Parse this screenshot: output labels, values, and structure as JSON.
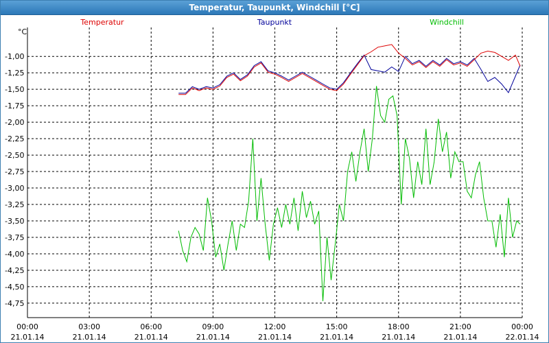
{
  "window": {
    "title": "Temperatur, Taupunkt, Windchill [°C]"
  },
  "chart_data": {
    "type": "line",
    "title": "Temperatur, Taupunkt, Windchill [°C]",
    "ylabel": "°C",
    "ylim": [
      -4.97,
      -0.56
    ],
    "grid": true,
    "legend_position": "top",
    "yticks": [
      "-1,00",
      "-1,25",
      "-1,50",
      "-1,75",
      "-2,00",
      "-2,25",
      "-2,50",
      "-2,75",
      "-3,00",
      "-3,25",
      "-3,50",
      "-3,75",
      "-4,00",
      "-4,25",
      "-4,50",
      "-4,75"
    ],
    "ytick_values": [
      -1.0,
      -1.25,
      -1.5,
      -1.75,
      -2.0,
      -2.25,
      -2.5,
      -2.75,
      -3.0,
      -3.25,
      -3.5,
      -3.75,
      -4.0,
      -4.25,
      -4.5,
      -4.75
    ],
    "xticks": [
      {
        "time": "00:00",
        "date": "21.01.14"
      },
      {
        "time": "03:00",
        "date": "21.01.14"
      },
      {
        "time": "06:00",
        "date": "21.01.14"
      },
      {
        "time": "09:00",
        "date": "21.01.14"
      },
      {
        "time": "12:00",
        "date": "21.01.14"
      },
      {
        "time": "15:00",
        "date": "21.01.14"
      },
      {
        "time": "18:00",
        "date": "21.01.14"
      },
      {
        "time": "21:00",
        "date": "21.01.14"
      },
      {
        "time": "00:00",
        "date": "22.01.14"
      }
    ],
    "xlim": [
      0,
      24
    ],
    "series": [
      {
        "name": "Temperatur",
        "color": "#dd0000",
        "x": [
          7.33,
          7.67,
          8.0,
          8.33,
          8.67,
          9.0,
          9.33,
          9.67,
          10.0,
          10.33,
          10.67,
          11.0,
          11.33,
          11.67,
          12.0,
          12.33,
          12.67,
          13.0,
          13.33,
          13.67,
          14.0,
          14.33,
          14.67,
          15.0,
          15.33,
          15.67,
          16.0,
          16.33,
          16.67,
          17.0,
          17.33,
          17.67,
          18.0,
          18.33,
          18.67,
          19.0,
          19.33,
          19.67,
          20.0,
          20.33,
          20.67,
          21.0,
          21.33,
          21.67,
          22.0,
          22.33,
          22.67,
          23.0,
          23.33,
          23.67,
          23.9
        ],
        "values": [
          -1.58,
          -1.58,
          -1.48,
          -1.52,
          -1.48,
          -1.5,
          -1.45,
          -1.32,
          -1.27,
          -1.37,
          -1.3,
          -1.16,
          -1.1,
          -1.24,
          -1.27,
          -1.32,
          -1.38,
          -1.32,
          -1.26,
          -1.32,
          -1.38,
          -1.44,
          -1.5,
          -1.52,
          -1.42,
          -1.27,
          -1.13,
          -0.99,
          -0.93,
          -0.86,
          -0.84,
          -0.82,
          -0.95,
          -1.03,
          -1.13,
          -1.08,
          -1.17,
          -1.08,
          -1.15,
          -1.05,
          -1.13,
          -1.1,
          -1.15,
          -1.05,
          -0.95,
          -0.92,
          -0.94,
          -1.0,
          -1.06,
          -0.98,
          -1.15
        ]
      },
      {
        "name": "Taupunkt",
        "color": "#000099",
        "x": [
          7.33,
          7.67,
          8.0,
          8.33,
          8.67,
          9.0,
          9.33,
          9.67,
          10.0,
          10.33,
          10.67,
          11.0,
          11.33,
          11.67,
          12.0,
          12.33,
          12.67,
          13.0,
          13.33,
          13.67,
          14.0,
          14.33,
          14.67,
          15.0,
          15.33,
          15.67,
          16.0,
          16.33,
          16.67,
          17.0,
          17.33,
          17.67,
          18.0,
          18.33,
          18.67,
          19.0,
          19.33,
          19.67,
          20.0,
          20.33,
          20.67,
          21.0,
          21.33,
          21.67,
          22.0,
          22.33,
          22.67,
          23.0,
          23.33,
          23.67,
          23.9
        ],
        "values": [
          -1.56,
          -1.56,
          -1.46,
          -1.5,
          -1.46,
          -1.48,
          -1.43,
          -1.3,
          -1.25,
          -1.35,
          -1.28,
          -1.14,
          -1.08,
          -1.22,
          -1.25,
          -1.3,
          -1.36,
          -1.3,
          -1.24,
          -1.3,
          -1.36,
          -1.42,
          -1.48,
          -1.5,
          -1.4,
          -1.25,
          -1.11,
          -0.98,
          -1.2,
          -1.22,
          -1.24,
          -1.16,
          -1.23,
          -1.0,
          -1.11,
          -1.06,
          -1.15,
          -1.06,
          -1.13,
          -1.03,
          -1.11,
          -1.08,
          -1.13,
          -1.03,
          -1.2,
          -1.38,
          -1.32,
          -1.42,
          -1.55,
          -1.3,
          -1.13
        ]
      },
      {
        "name": "Windchill",
        "color": "#00bb00",
        "x": [
          7.33,
          7.53,
          7.73,
          7.93,
          8.13,
          8.33,
          8.53,
          8.73,
          8.93,
          9.13,
          9.33,
          9.53,
          9.73,
          9.93,
          10.13,
          10.33,
          10.53,
          10.73,
          10.93,
          11.13,
          11.33,
          11.53,
          11.73,
          11.93,
          12.13,
          12.33,
          12.53,
          12.73,
          12.93,
          13.13,
          13.33,
          13.53,
          13.73,
          13.93,
          14.13,
          14.33,
          14.53,
          14.73,
          14.93,
          15.13,
          15.33,
          15.53,
          15.73,
          15.93,
          16.13,
          16.33,
          16.53,
          16.73,
          16.93,
          17.13,
          17.33,
          17.53,
          17.73,
          17.93,
          18.13,
          18.33,
          18.53,
          18.73,
          18.93,
          19.13,
          19.33,
          19.53,
          19.73,
          19.93,
          20.13,
          20.33,
          20.53,
          20.73,
          20.93,
          21.13,
          21.33,
          21.53,
          21.73,
          21.93,
          22.13,
          22.33,
          22.53,
          22.73,
          22.93,
          23.13,
          23.33,
          23.53,
          23.73,
          23.9
        ],
        "values": [
          -3.65,
          -3.95,
          -4.12,
          -3.75,
          -3.6,
          -3.7,
          -3.95,
          -3.15,
          -3.5,
          -4.05,
          -3.85,
          -4.25,
          -3.85,
          -3.5,
          -3.95,
          -3.55,
          -3.6,
          -3.2,
          -2.25,
          -3.5,
          -2.85,
          -3.55,
          -4.1,
          -3.55,
          -3.3,
          -3.6,
          -3.25,
          -3.55,
          -3.15,
          -3.65,
          -3.05,
          -3.45,
          -3.2,
          -3.55,
          -3.35,
          -4.72,
          -3.75,
          -4.4,
          -3.85,
          -3.25,
          -3.5,
          -2.75,
          -2.45,
          -2.9,
          -2.45,
          -2.1,
          -2.75,
          -2.25,
          -1.45,
          -1.9,
          -2.0,
          -1.65,
          -1.6,
          -1.9,
          -3.25,
          -2.25,
          -2.55,
          -3.15,
          -2.6,
          -2.95,
          -2.1,
          -2.95,
          -2.6,
          -1.95,
          -2.45,
          -2.15,
          -2.85,
          -2.45,
          -2.6,
          -2.6,
          -3.05,
          -3.15,
          -2.8,
          -2.6,
          -3.15,
          -3.5,
          -3.5,
          -3.9,
          -3.4,
          -4.05,
          -3.15,
          -3.75,
          -3.5,
          -3.55
        ]
      }
    ]
  }
}
